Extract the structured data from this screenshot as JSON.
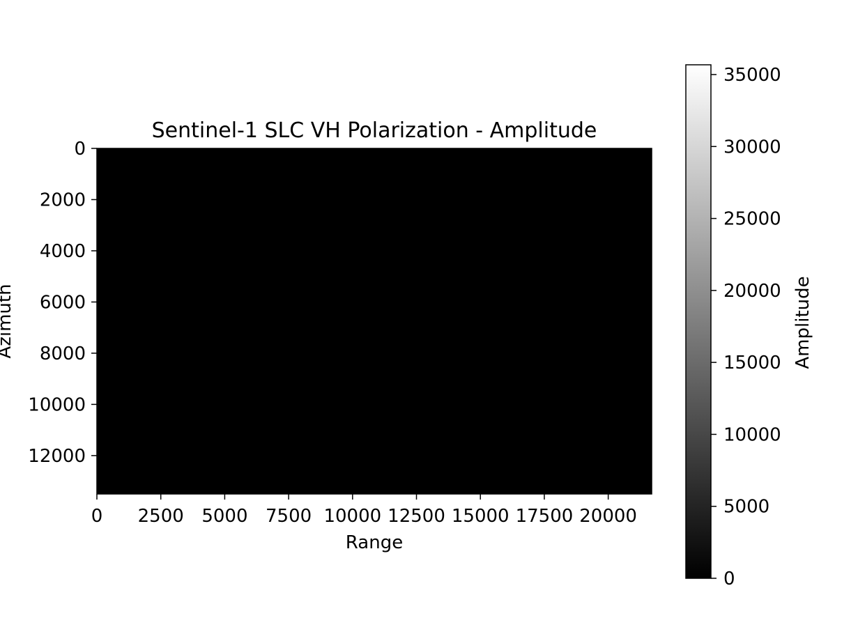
{
  "chart_data": {
    "type": "heatmap",
    "title": "Sentinel-1 SLC VH Polarization - Amplitude",
    "xlabel": "Range",
    "ylabel": "Azimuth",
    "xlim": [
      0,
      21700
    ],
    "ylim": [
      13500,
      0
    ],
    "x_ticks": [
      0,
      2500,
      5000,
      7500,
      10000,
      12500,
      15000,
      17500,
      20000
    ],
    "y_ticks": [
      0,
      2000,
      4000,
      6000,
      8000,
      10000,
      12000
    ],
    "colormap": "gray",
    "image_color": "#000000",
    "colorbar": {
      "label": "Amplitude",
      "range": [
        0,
        35000
      ],
      "ticks": [
        0,
        5000,
        10000,
        15000,
        20000,
        25000,
        30000,
        35000
      ]
    },
    "grid": false
  }
}
